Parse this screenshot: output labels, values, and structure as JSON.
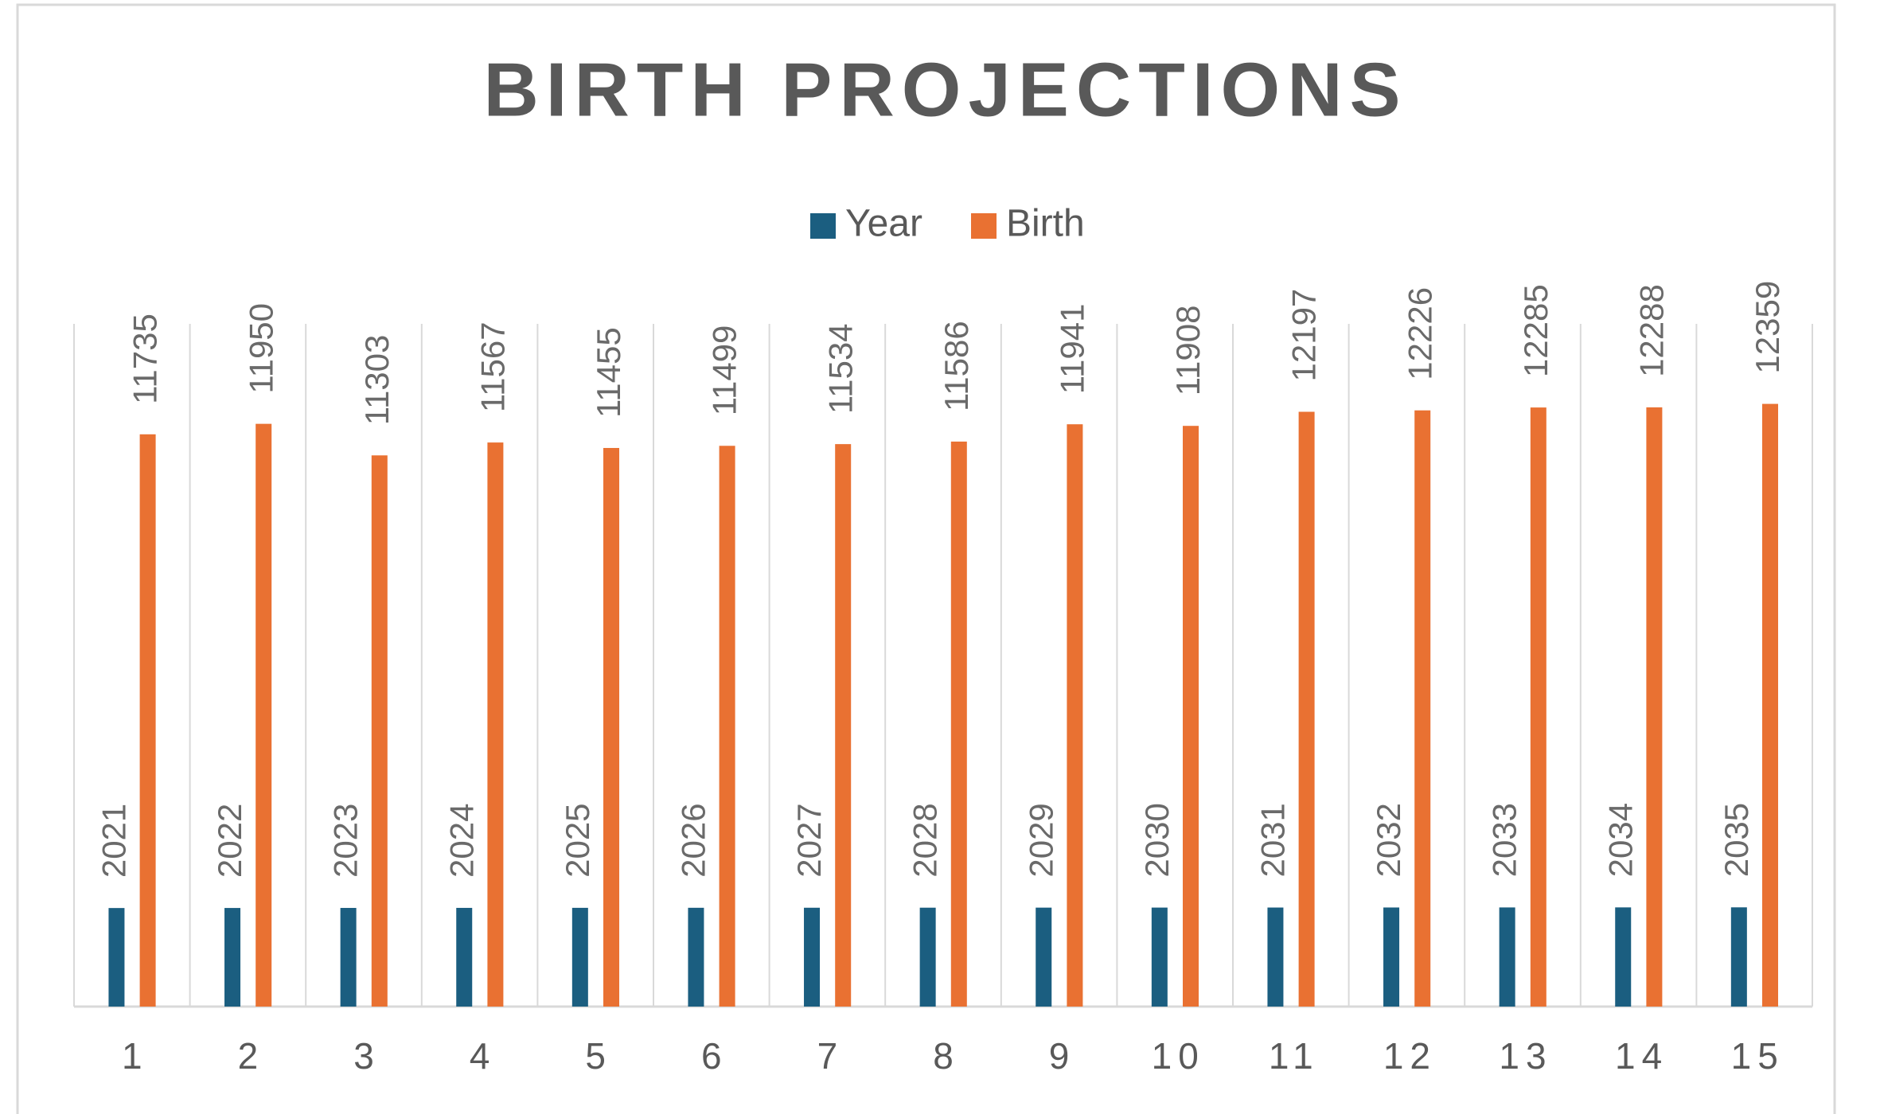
{
  "chart_data": {
    "type": "bar",
    "title": "BIRTH PROJECTIONS",
    "categories": [
      1,
      2,
      3,
      4,
      5,
      6,
      7,
      8,
      9,
      10,
      11,
      12,
      13,
      14,
      15
    ],
    "series": [
      {
        "name": "Year",
        "color": "#1b5e80",
        "values": [
          2021,
          2022,
          2023,
          2024,
          2025,
          2026,
          2027,
          2028,
          2029,
          2030,
          2031,
          2032,
          2033,
          2034,
          2035
        ]
      },
      {
        "name": "Birth",
        "color": "#e97132",
        "values": [
          11735,
          11950,
          11303,
          11567,
          11455,
          11499,
          11534,
          11586,
          11941,
          11908,
          12197,
          12226,
          12285,
          12288,
          12359
        ]
      }
    ],
    "ylim": [
      0,
      14000
    ],
    "legend": "top",
    "data_labels": true
  }
}
